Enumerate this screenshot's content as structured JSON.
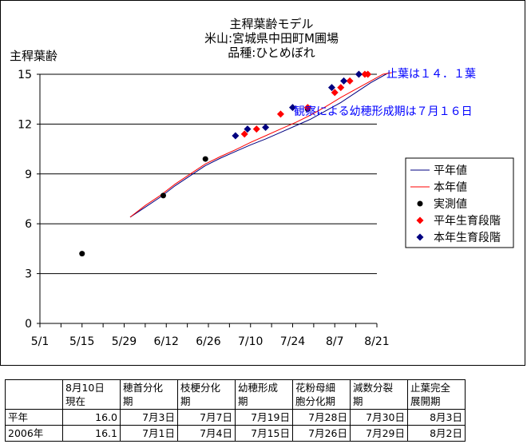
{
  "chart_data": {
    "type": "line",
    "title": [
      "主稈葉齢モデル",
      "米山:宮城県中田町M圃場",
      "品種:ひとめぼれ"
    ],
    "ylabel": "主稈葉齢",
    "xlabel": "",
    "ylim": [
      0,
      15
    ],
    "yticks": [
      "0",
      "3",
      "6",
      "9",
      "12",
      "15"
    ],
    "xticks": [
      "5/1",
      "5/15",
      "5/29",
      "6/12",
      "6/26",
      "7/10",
      "7/24",
      "8/7",
      "8/21"
    ],
    "grid": "horizontal",
    "legend_position": "right",
    "series": [
      {
        "name": "平年値",
        "kind": "line",
        "color": "#000080",
        "points": [
          [
            30,
            6.4
          ],
          [
            35,
            7.0
          ],
          [
            40,
            7.6
          ],
          [
            45,
            8.3
          ],
          [
            50,
            8.9
          ],
          [
            55,
            9.5
          ],
          [
            60,
            9.95
          ],
          [
            65,
            10.35
          ],
          [
            70,
            10.75
          ],
          [
            75,
            11.1
          ],
          [
            80,
            11.5
          ],
          [
            85,
            11.9
          ],
          [
            90,
            12.3
          ],
          [
            95,
            12.8
          ],
          [
            100,
            13.3
          ],
          [
            105,
            13.9
          ],
          [
            110,
            14.5
          ],
          [
            115,
            15.0
          ],
          [
            116,
            15.1
          ]
        ]
      },
      {
        "name": "本年値",
        "kind": "line",
        "color": "#ff0000",
        "points": [
          [
            30,
            6.4
          ],
          [
            35,
            7.1
          ],
          [
            40,
            7.7
          ],
          [
            45,
            8.4
          ],
          [
            50,
            9.0
          ],
          [
            55,
            9.6
          ],
          [
            60,
            10.05
          ],
          [
            65,
            10.45
          ],
          [
            70,
            10.9
          ],
          [
            75,
            11.3
          ],
          [
            80,
            11.7
          ],
          [
            85,
            12.1
          ],
          [
            90,
            12.55
          ],
          [
            95,
            13.05
          ],
          [
            100,
            13.6
          ],
          [
            105,
            14.1
          ],
          [
            110,
            14.6
          ],
          [
            114,
            15.0
          ],
          [
            117,
            15.1
          ]
        ]
      },
      {
        "name": "実測値",
        "kind": "marker",
        "marker": "circle",
        "color": "#000000",
        "points": [
          [
            14,
            4.2
          ],
          [
            41,
            7.7
          ],
          [
            55,
            9.9
          ],
          [
            89,
            12.9
          ]
        ]
      },
      {
        "name": "平年生育段階",
        "kind": "marker",
        "marker": "diamond",
        "color": "#ff0000",
        "points": [
          [
            68,
            11.4
          ],
          [
            72,
            11.7
          ],
          [
            80,
            12.6
          ],
          [
            89,
            13.0
          ],
          [
            98,
            13.9
          ],
          [
            100,
            14.2
          ],
          [
            103,
            14.6
          ],
          [
            108,
            15.0
          ],
          [
            109,
            15.0
          ]
        ]
      },
      {
        "name": "本年生育段階",
        "kind": "marker",
        "marker": "diamond",
        "color": "#000080",
        "points": [
          [
            65,
            11.3
          ],
          [
            69,
            11.7
          ],
          [
            75,
            11.8
          ],
          [
            84,
            13.0
          ],
          [
            97,
            14.2
          ],
          [
            101,
            14.6
          ],
          [
            106,
            15.0
          ]
        ]
      }
    ],
    "annotations": [
      {
        "text": "止葉は１４．１葉",
        "color": "#0000ff"
      },
      {
        "text": "観察による幼穂形成期は７月１６日",
        "color": "#0000ff"
      }
    ]
  },
  "table": {
    "headers": [
      "",
      [
        "8月10日",
        "現在"
      ],
      [
        "穂首分化",
        "期"
      ],
      [
        "枝梗分化",
        "期"
      ],
      [
        "幼穂形成",
        "期"
      ],
      [
        "花粉母細",
        "胞分化期"
      ],
      [
        "減数分裂",
        "期"
      ],
      [
        "止葉完全",
        "展開期"
      ]
    ],
    "rows": [
      [
        "平年",
        "16.0",
        "7月3日",
        "7月7日",
        "7月19日",
        "7月28日",
        "7月30日",
        "8月3日"
      ],
      [
        "2006年",
        "16.1",
        "7月1日",
        "7月4日",
        "7月15日",
        "7月26日",
        "7月29日",
        "8月2日"
      ]
    ]
  }
}
